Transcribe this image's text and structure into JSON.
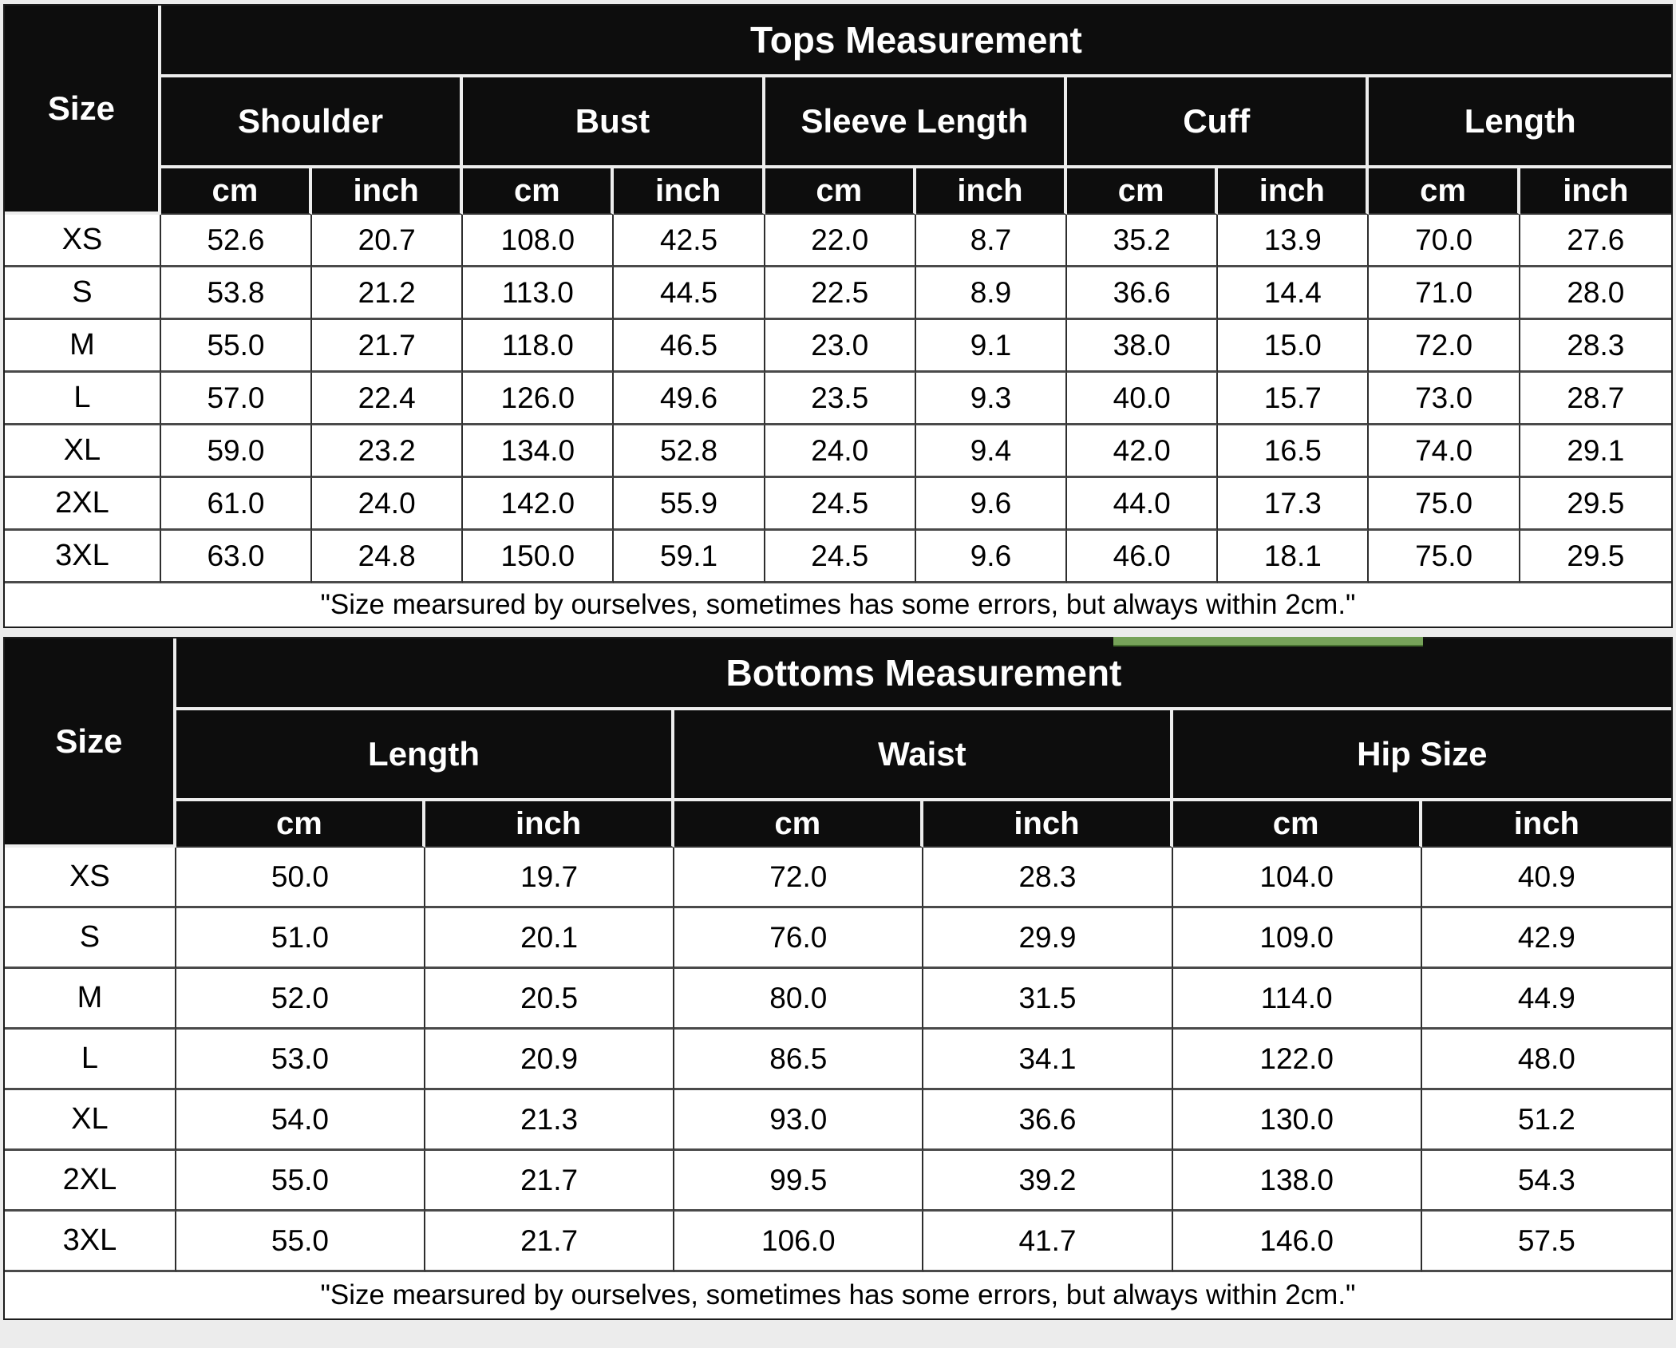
{
  "page": {
    "background": "#ececec"
  },
  "colors": {
    "header_bg": "#0d0d0d",
    "header_text": "#ffffff",
    "cell_bg": "#ffffff",
    "cell_text": "#000000",
    "header_divider": "#ededed",
    "cell_border": "#2e2e2e",
    "green_bar": "#76a259"
  },
  "tables": [
    {
      "id": "tops",
      "title": "Tops Measurement",
      "size_header": "Size",
      "groups": [
        {
          "label": "Shoulder"
        },
        {
          "label": "Bust"
        },
        {
          "label": "Sleeve Length"
        },
        {
          "label": "Cuff"
        },
        {
          "label": "Length"
        }
      ],
      "unit_labels": [
        "cm",
        "inch"
      ],
      "rows": [
        {
          "size": "XS",
          "values": [
            "52.6",
            "20.7",
            "108.0",
            "42.5",
            "22.0",
            "8.7",
            "35.2",
            "13.9",
            "70.0",
            "27.6"
          ]
        },
        {
          "size": "S",
          "values": [
            "53.8",
            "21.2",
            "113.0",
            "44.5",
            "22.5",
            "8.9",
            "36.6",
            "14.4",
            "71.0",
            "28.0"
          ]
        },
        {
          "size": "M",
          "values": [
            "55.0",
            "21.7",
            "118.0",
            "46.5",
            "23.0",
            "9.1",
            "38.0",
            "15.0",
            "72.0",
            "28.3"
          ]
        },
        {
          "size": "L",
          "values": [
            "57.0",
            "22.4",
            "126.0",
            "49.6",
            "23.5",
            "9.3",
            "40.0",
            "15.7",
            "73.0",
            "28.7"
          ]
        },
        {
          "size": "XL",
          "values": [
            "59.0",
            "23.2",
            "134.0",
            "52.8",
            "24.0",
            "9.4",
            "42.0",
            "16.5",
            "74.0",
            "29.1"
          ]
        },
        {
          "size": "2XL",
          "values": [
            "61.0",
            "24.0",
            "142.0",
            "55.9",
            "24.5",
            "9.6",
            "44.0",
            "17.3",
            "75.0",
            "29.5"
          ]
        },
        {
          "size": "3XL",
          "values": [
            "63.0",
            "24.8",
            "150.0",
            "59.1",
            "24.5",
            "9.6",
            "46.0",
            "18.1",
            "75.0",
            "29.5"
          ]
        }
      ],
      "note": "\"Size mearsured by ourselves, sometimes has some errors, but always within 2cm.\""
    },
    {
      "id": "bottoms",
      "title": "Bottoms Measurement",
      "size_header": "Size",
      "groups": [
        {
          "label": "Length"
        },
        {
          "label": "Waist"
        },
        {
          "label": "Hip Size"
        }
      ],
      "unit_labels": [
        "cm",
        "inch"
      ],
      "rows": [
        {
          "size": "XS",
          "values": [
            "50.0",
            "19.7",
            "72.0",
            "28.3",
            "104.0",
            "40.9"
          ]
        },
        {
          "size": "S",
          "values": [
            "51.0",
            "20.1",
            "76.0",
            "29.9",
            "109.0",
            "42.9"
          ]
        },
        {
          "size": "M",
          "values": [
            "52.0",
            "20.5",
            "80.0",
            "31.5",
            "114.0",
            "44.9"
          ]
        },
        {
          "size": "L",
          "values": [
            "53.0",
            "20.9",
            "86.5",
            "34.1",
            "122.0",
            "48.0"
          ]
        },
        {
          "size": "XL",
          "values": [
            "54.0",
            "21.3",
            "93.0",
            "36.6",
            "130.0",
            "51.2"
          ]
        },
        {
          "size": "2XL",
          "values": [
            "55.0",
            "21.7",
            "99.5",
            "39.2",
            "138.0",
            "54.3"
          ]
        },
        {
          "size": "3XL",
          "values": [
            "55.0",
            "21.7",
            "106.0",
            "41.7",
            "146.0",
            "57.5"
          ]
        }
      ],
      "note": "\"Size mearsured by ourselves, sometimes has some errors, but always within 2cm.\""
    }
  ]
}
